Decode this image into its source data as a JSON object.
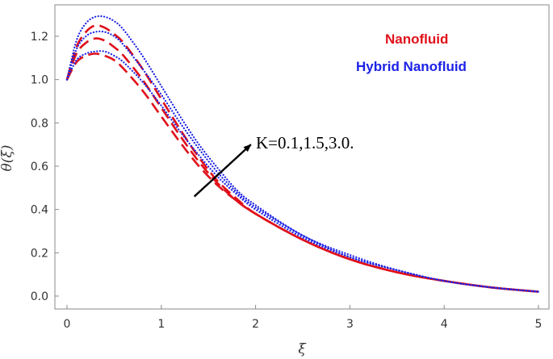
{
  "chart_data": {
    "type": "line",
    "xlabel": "ξ",
    "ylabel": "θ(ξ)",
    "xlim": [
      0,
      5
    ],
    "ylim": [
      -0.05,
      1.4
    ],
    "x_ticks": [
      0,
      1,
      2,
      3,
      4,
      5
    ],
    "y_ticks": [
      0.0,
      0.2,
      0.4,
      0.6,
      0.8,
      1.0,
      1.2
    ],
    "x_tick_labels": [
      "0",
      "1",
      "2",
      "3",
      "4",
      "5"
    ],
    "y_tick_labels": [
      "0.0",
      "0.2",
      "0.4",
      "0.6",
      "0.8",
      "1.0",
      "1.2"
    ],
    "grid": false,
    "legend": {
      "position": "top-right",
      "entries": [
        {
          "label": "Nanofluid",
          "color": "#e0101a"
        },
        {
          "label": "Hybrid Nanofluid",
          "color": "#1c22e6"
        }
      ]
    },
    "annotation": {
      "text": "K=0.1,1.5,3.0.",
      "arrow_from": [
        1.35,
        0.46
      ],
      "arrow_to": [
        1.95,
        0.7
      ]
    },
    "series": [
      {
        "group": "Nanofluid",
        "style": "dashed",
        "color": "#e0101a",
        "x": [
          0,
          0.1,
          0.2,
          0.3,
          0.4,
          0.5,
          0.6,
          0.8,
          1.0,
          1.2,
          1.4,
          1.6,
          1.8,
          2.0,
          2.5,
          3.0,
          3.5,
          4.0,
          4.5,
          5.0
        ],
        "y": [
          1.0,
          1.08,
          1.11,
          1.12,
          1.11,
          1.09,
          1.05,
          0.95,
          0.83,
          0.71,
          0.6,
          0.51,
          0.44,
          0.38,
          0.26,
          0.17,
          0.11,
          0.07,
          0.04,
          0.02
        ]
      },
      {
        "group": "Nanofluid",
        "style": "dashed",
        "color": "#e0101a",
        "x": [
          0,
          0.1,
          0.2,
          0.3,
          0.4,
          0.5,
          0.6,
          0.8,
          1.0,
          1.2,
          1.4,
          1.6,
          1.8,
          2.0,
          2.5,
          3.0,
          3.5,
          4.0,
          4.5,
          5.0
        ],
        "y": [
          1.0,
          1.12,
          1.17,
          1.19,
          1.18,
          1.15,
          1.11,
          1.0,
          0.87,
          0.74,
          0.62,
          0.52,
          0.44,
          0.38,
          0.26,
          0.17,
          0.11,
          0.07,
          0.04,
          0.02
        ]
      },
      {
        "group": "Nanofluid",
        "style": "dashed",
        "color": "#e0101a",
        "x": [
          0,
          0.1,
          0.2,
          0.3,
          0.4,
          0.5,
          0.6,
          0.8,
          1.0,
          1.2,
          1.4,
          1.6,
          1.8,
          2.0,
          2.5,
          3.0,
          3.5,
          4.0,
          4.5,
          5.0
        ],
        "y": [
          1.0,
          1.15,
          1.22,
          1.25,
          1.24,
          1.21,
          1.17,
          1.05,
          0.91,
          0.77,
          0.64,
          0.53,
          0.45,
          0.38,
          0.26,
          0.17,
          0.11,
          0.07,
          0.04,
          0.02
        ]
      },
      {
        "group": "Hybrid Nanofluid",
        "style": "dotted",
        "color": "#1c22e6",
        "x": [
          0,
          0.1,
          0.2,
          0.3,
          0.4,
          0.5,
          0.6,
          0.8,
          1.0,
          1.2,
          1.4,
          1.6,
          1.8,
          2.0,
          2.5,
          3.0,
          3.5,
          4.0,
          4.5,
          5.0
        ],
        "y": [
          1.0,
          1.09,
          1.12,
          1.13,
          1.13,
          1.11,
          1.08,
          0.99,
          0.88,
          0.76,
          0.65,
          0.55,
          0.47,
          0.4,
          0.27,
          0.18,
          0.12,
          0.07,
          0.04,
          0.02
        ]
      },
      {
        "group": "Hybrid Nanofluid",
        "style": "dotted",
        "color": "#1c22e6",
        "x": [
          0,
          0.1,
          0.2,
          0.3,
          0.4,
          0.5,
          0.6,
          0.8,
          1.0,
          1.2,
          1.4,
          1.6,
          1.8,
          2.0,
          2.5,
          3.0,
          3.5,
          4.0,
          4.5,
          5.0
        ],
        "y": [
          1.0,
          1.14,
          1.2,
          1.22,
          1.22,
          1.2,
          1.16,
          1.05,
          0.93,
          0.8,
          0.68,
          0.57,
          0.48,
          0.41,
          0.28,
          0.18,
          0.12,
          0.07,
          0.04,
          0.02
        ]
      },
      {
        "group": "Hybrid Nanofluid",
        "style": "dotted",
        "color": "#1c22e6",
        "x": [
          0,
          0.1,
          0.2,
          0.3,
          0.4,
          0.5,
          0.6,
          0.8,
          1.0,
          1.2,
          1.4,
          1.6,
          1.8,
          2.0,
          2.5,
          3.0,
          3.5,
          4.0,
          4.5,
          5.0
        ],
        "y": [
          1.0,
          1.18,
          1.26,
          1.29,
          1.29,
          1.27,
          1.23,
          1.11,
          0.97,
          0.83,
          0.7,
          0.59,
          0.49,
          0.42,
          0.28,
          0.19,
          0.12,
          0.07,
          0.04,
          0.02
        ]
      }
    ]
  }
}
